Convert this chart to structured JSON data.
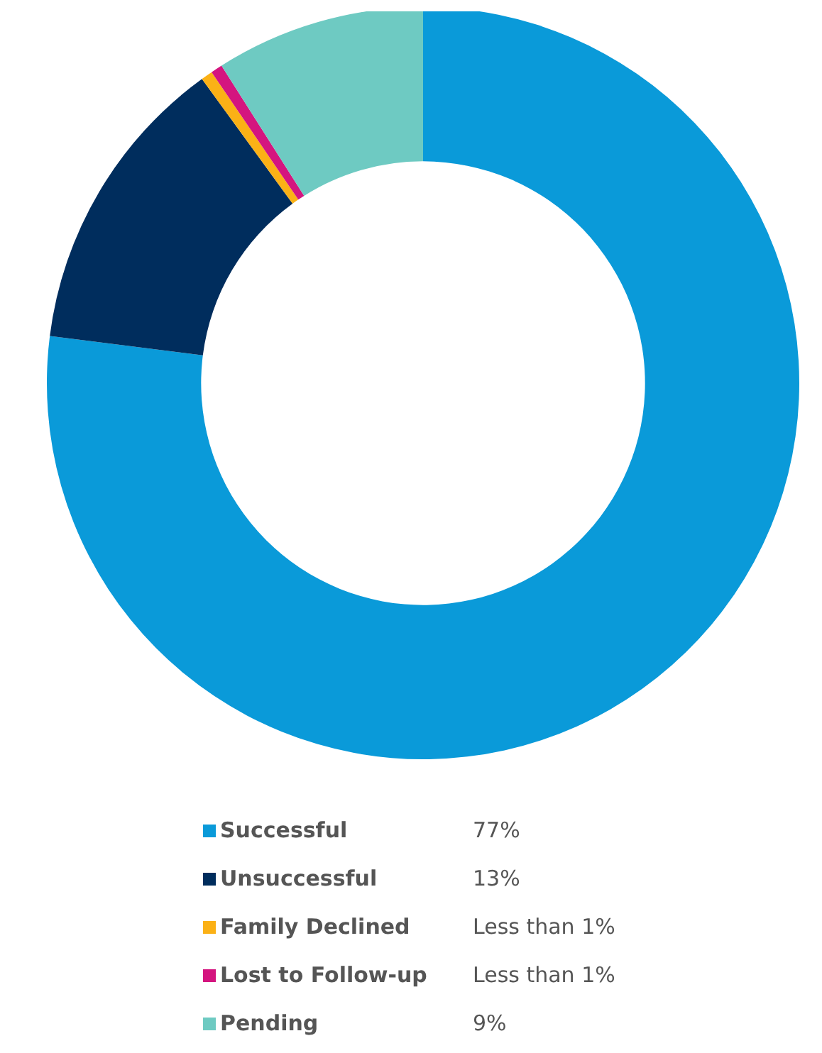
{
  "chart_data": {
    "type": "donut",
    "categories": [
      "Successful",
      "Unsuccessful",
      "Family Declined",
      "Lost to Follow-up",
      "Pending"
    ],
    "values": [
      77,
      13,
      0.5,
      0.5,
      9
    ],
    "colors": [
      "#0a9ad9",
      "#002d5d",
      "#fbb116",
      "#d4157f",
      "#6ecac2"
    ],
    "value_labels": [
      "77%",
      "13%",
      "Less than 1%",
      "Less than 1%",
      "9%"
    ],
    "legend": "bottom"
  }
}
